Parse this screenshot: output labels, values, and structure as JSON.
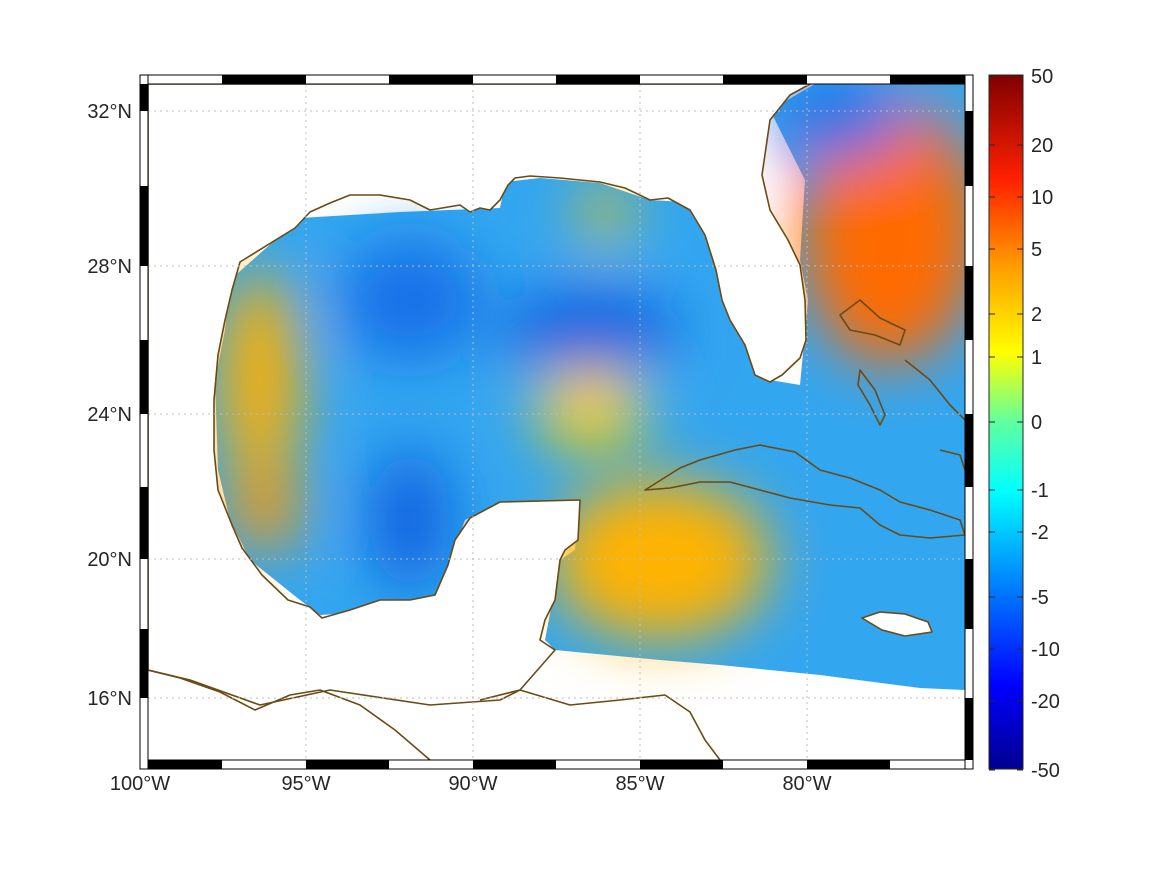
{
  "map": {
    "lon_labels": [
      "100°W",
      "95°W",
      "90°W",
      "85°W",
      "80°W"
    ],
    "lon_values": [
      -100,
      -95,
      -90,
      -85,
      -80
    ],
    "lat_labels": [
      "32°N",
      "28°N",
      "24°N",
      "20°N",
      "16°N"
    ],
    "lat_values": [
      32,
      28,
      24,
      20,
      16
    ],
    "extent": {
      "lon_min": -100,
      "lon_max": -75,
      "lat_min": 14.2,
      "lat_max": 33
    },
    "grid": "dotted",
    "coastline_color": "#6b4a14",
    "land_color": "#ffffff",
    "frame_style": "alternating black-white"
  },
  "colorbar": {
    "tick_labels": [
      "50",
      "20",
      "10",
      "5",
      "2",
      "1",
      "0",
      "-1",
      "-2",
      "-5",
      "-10",
      "-20",
      "-50"
    ],
    "range": [
      -50,
      50
    ],
    "colormap": "jet",
    "placement": "right"
  },
  "chart_data": {
    "type": "heatmap",
    "title": "",
    "xlabel": "",
    "ylabel": "",
    "x_range": [
      -100,
      -75
    ],
    "y_range": [
      14.2,
      33
    ],
    "value_range": [
      -50,
      50
    ],
    "scale": "symmetric nonlinear",
    "colorbar_ticks": [
      50,
      20,
      10,
      5,
      2,
      1,
      0,
      -1,
      -2,
      -5,
      -10,
      -20,
      -50
    ],
    "regions": [
      {
        "lon": -77.5,
        "lat": 29.5,
        "value": 8
      },
      {
        "lon": -78.5,
        "lat": 26.5,
        "value": 6
      },
      {
        "lon": -97.5,
        "lat": 26,
        "value": 4
      },
      {
        "lon": -96,
        "lat": 21,
        "value": 4
      },
      {
        "lon": -85,
        "lat": 20,
        "value": 3
      },
      {
        "lon": -84,
        "lat": 18.5,
        "value": 2
      },
      {
        "lon": -85.5,
        "lat": 29.3,
        "value": 2
      },
      {
        "lon": -85.5,
        "lat": 24.5,
        "value": 2
      },
      {
        "lon": -81,
        "lat": 20.5,
        "value": 1.5
      },
      {
        "lon": -93,
        "lat": 27.5,
        "value": -4
      },
      {
        "lon": -85,
        "lat": 26,
        "value": -5
      },
      {
        "lon": -91,
        "lat": 21,
        "value": -5
      },
      {
        "lon": -79,
        "lat": 31.5,
        "value": -5
      },
      {
        "lon": -89,
        "lat": 25,
        "value": -3
      },
      {
        "lon": -77,
        "lat": 22,
        "value": -3
      },
      {
        "lon": -80,
        "lat": 17,
        "value": -2
      }
    ]
  }
}
